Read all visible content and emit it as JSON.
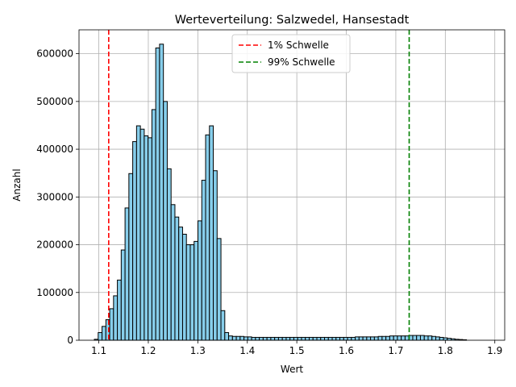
{
  "chart_data": {
    "type": "bar",
    "subtype": "histogram",
    "title": "Werteverteilung: Salzwedel, Hansestadt",
    "xlabel": "Wert",
    "ylabel": "Anzahl",
    "xlim": [
      1.06,
      1.92
    ],
    "ylim": [
      0,
      650000
    ],
    "x_ticks": [
      1.1,
      1.2,
      1.3,
      1.4,
      1.5,
      1.6,
      1.7,
      1.8,
      1.9
    ],
    "x_tick_labels": [
      "1.1",
      "1.2",
      "1.3",
      "1.4",
      "1.5",
      "1.6",
      "1.7",
      "1.8",
      "1.9"
    ],
    "y_ticks": [
      0,
      100000,
      200000,
      300000,
      400000,
      500000,
      600000
    ],
    "y_tick_labels": [
      "0",
      "100000",
      "200000",
      "300000",
      "400000",
      "500000",
      "600000"
    ],
    "grid": true,
    "legend_position": "top-center",
    "bar_color": "#87ceeb",
    "bar_edge_color": "#000000",
    "bin_start": 1.091,
    "bin_width": 0.00775,
    "values": [
      2000,
      16000,
      29000,
      43000,
      66000,
      93000,
      126000,
      189000,
      277000,
      349000,
      416000,
      449000,
      442000,
      428000,
      424000,
      483000,
      612000,
      620000,
      500000,
      359000,
      284000,
      258000,
      237000,
      222000,
      200000,
      200000,
      207000,
      250000,
      335000,
      430000,
      449000,
      355000,
      213000,
      62000,
      16000,
      9000,
      8000,
      8000,
      8000,
      7000,
      7000,
      6000,
      6000,
      6000,
      6000,
      6000,
      6000,
      6000,
      6000,
      6000,
      6000,
      6000,
      6000,
      6000,
      6000,
      6000,
      6000,
      6000,
      6000,
      6000,
      6000,
      6000,
      6000,
      6000,
      6000,
      6000,
      6000,
      6000,
      7000,
      7000,
      7000,
      7000,
      7000,
      7000,
      8000,
      8000,
      8000,
      9000,
      9000,
      9000,
      9000,
      9000,
      10000,
      10000,
      10000,
      10000,
      9000,
      9000,
      8000,
      7000,
      6000,
      5000,
      4000,
      3000,
      2000,
      1500,
      1000
    ],
    "threshold_lines": [
      {
        "name": "1% Schwelle",
        "x": 1.12,
        "color": "#ff0000"
      },
      {
        "name": "99% Schwelle",
        "x": 1.727,
        "color": "#008000"
      }
    ]
  }
}
